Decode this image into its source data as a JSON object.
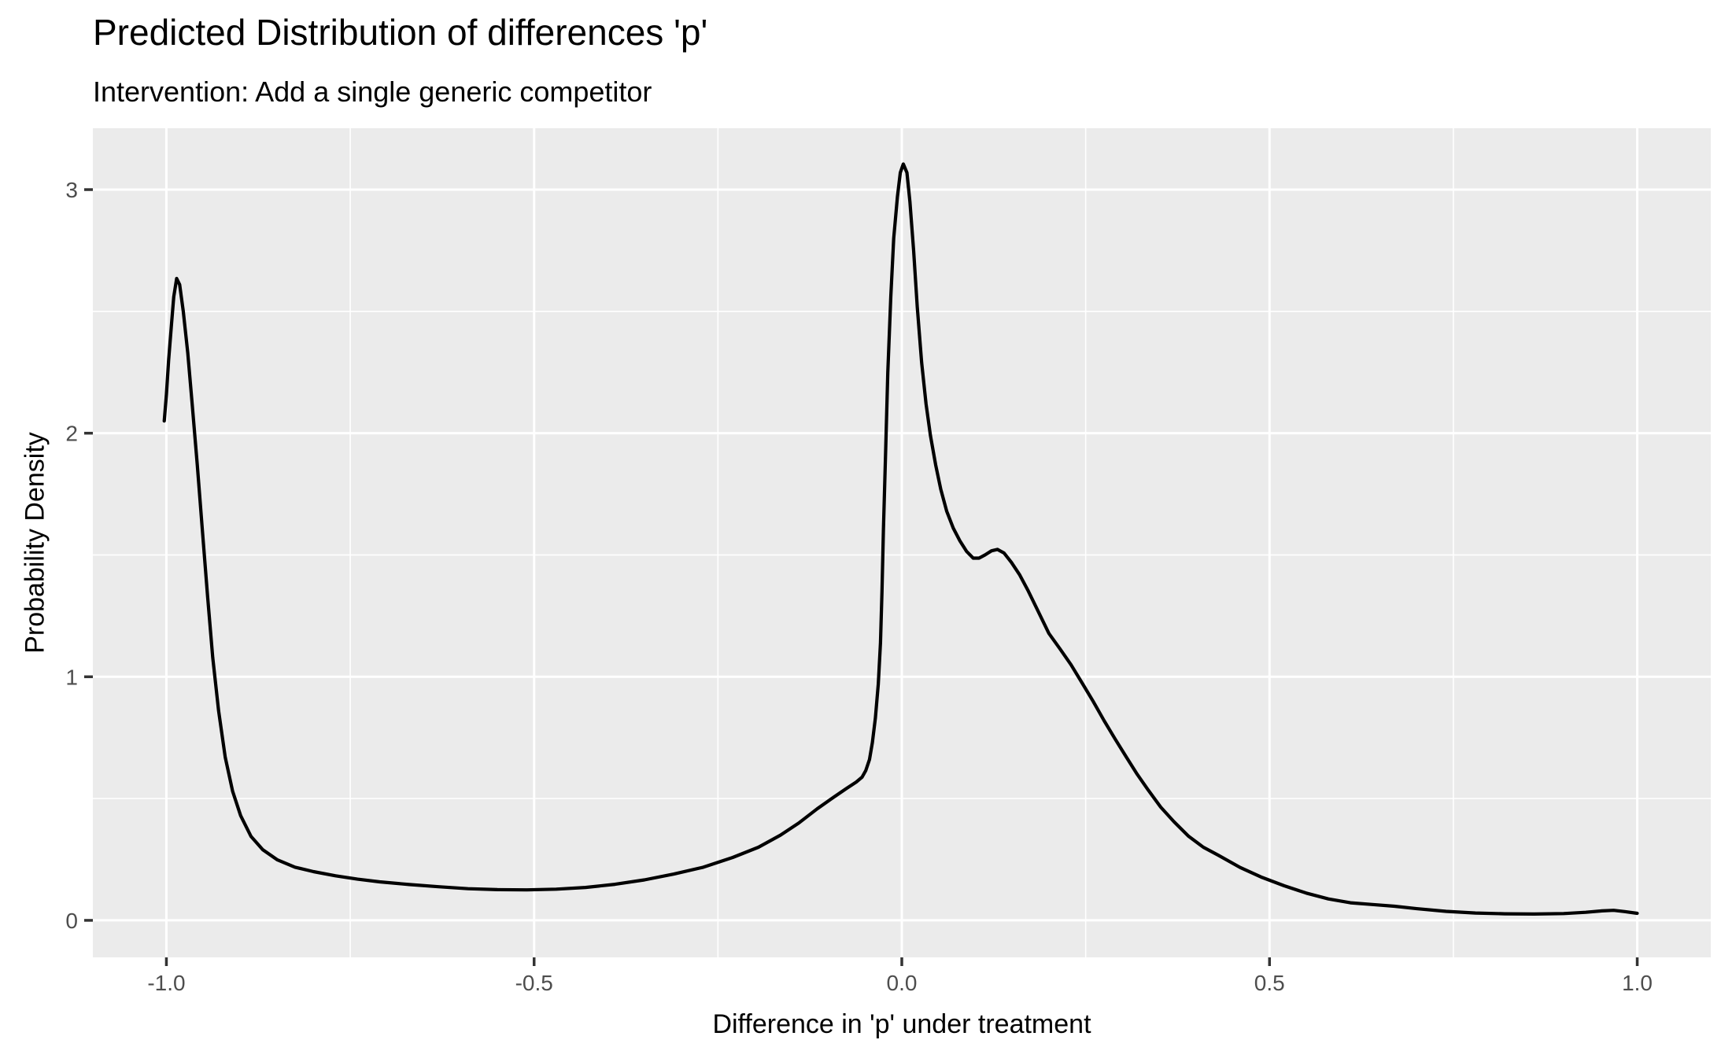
{
  "chart_data": {
    "type": "line",
    "subtype": "density-curve",
    "title": "Predicted Distribution of differences 'p'",
    "subtitle": "Intervention: Add a single generic competitor",
    "xlabel": "Difference in 'p' under treatment",
    "ylabel": "Probability Density",
    "xlim": [
      -1.1,
      1.1
    ],
    "ylim": [
      -0.152,
      3.252
    ],
    "x_breaks": [
      -1.0,
      -0.5,
      0.0,
      0.5,
      1.0
    ],
    "x_tick_labels": [
      "-1.0",
      "-0.5",
      "0.0",
      "0.5",
      "1.0"
    ],
    "x_minor_breaks": [
      -0.75,
      -0.25,
      0.25,
      0.75
    ],
    "y_breaks": [
      0,
      1,
      2,
      3
    ],
    "y_tick_labels": [
      "0",
      "1",
      "2",
      "3"
    ],
    "y_minor_breaks": [
      0.5,
      1.5,
      2.5
    ],
    "grid": "major-and-minor",
    "legend": "none",
    "theme": "ggplot2-grey",
    "series": [
      {
        "name": "density",
        "points": [
          [
            -1.003,
            2.05
          ],
          [
            -1.0,
            2.16
          ],
          [
            -0.997,
            2.3
          ],
          [
            -0.993,
            2.45
          ],
          [
            -0.99,
            2.56
          ],
          [
            -0.986,
            2.635
          ],
          [
            -0.982,
            2.61
          ],
          [
            -0.977,
            2.5
          ],
          [
            -0.971,
            2.33
          ],
          [
            -0.965,
            2.12
          ],
          [
            -0.958,
            1.87
          ],
          [
            -0.951,
            1.6
          ],
          [
            -0.944,
            1.33
          ],
          [
            -0.937,
            1.08
          ],
          [
            -0.929,
            0.86
          ],
          [
            -0.92,
            0.67
          ],
          [
            -0.91,
            0.53
          ],
          [
            -0.899,
            0.43
          ],
          [
            -0.885,
            0.345
          ],
          [
            -0.869,
            0.29
          ],
          [
            -0.849,
            0.248
          ],
          [
            -0.825,
            0.218
          ],
          [
            -0.8,
            0.2
          ],
          [
            -0.77,
            0.183
          ],
          [
            -0.74,
            0.169
          ],
          [
            -0.71,
            0.158
          ],
          [
            -0.67,
            0.147
          ],
          [
            -0.63,
            0.138
          ],
          [
            -0.59,
            0.13
          ],
          [
            -0.55,
            0.126
          ],
          [
            -0.51,
            0.125
          ],
          [
            -0.47,
            0.128
          ],
          [
            -0.43,
            0.135
          ],
          [
            -0.39,
            0.148
          ],
          [
            -0.35,
            0.166
          ],
          [
            -0.31,
            0.19
          ],
          [
            -0.27,
            0.218
          ],
          [
            -0.23,
            0.258
          ],
          [
            -0.195,
            0.3
          ],
          [
            -0.165,
            0.35
          ],
          [
            -0.14,
            0.4
          ],
          [
            -0.115,
            0.458
          ],
          [
            -0.093,
            0.505
          ],
          [
            -0.075,
            0.542
          ],
          [
            -0.062,
            0.568
          ],
          [
            -0.054,
            0.588
          ],
          [
            -0.049,
            0.615
          ],
          [
            -0.044,
            0.66
          ],
          [
            -0.04,
            0.73
          ],
          [
            -0.036,
            0.83
          ],
          [
            -0.032,
            0.97
          ],
          [
            -0.029,
            1.14
          ],
          [
            -0.027,
            1.35
          ],
          [
            -0.025,
            1.6
          ],
          [
            -0.022,
            1.92
          ],
          [
            -0.019,
            2.25
          ],
          [
            -0.015,
            2.56
          ],
          [
            -0.011,
            2.8
          ],
          [
            -0.006,
            2.97
          ],
          [
            -0.002,
            3.07
          ],
          [
            0.002,
            3.105
          ],
          [
            0.007,
            3.07
          ],
          [
            0.011,
            2.95
          ],
          [
            0.016,
            2.75
          ],
          [
            0.021,
            2.52
          ],
          [
            0.027,
            2.29
          ],
          [
            0.033,
            2.12
          ],
          [
            0.039,
            1.99
          ],
          [
            0.046,
            1.87
          ],
          [
            0.053,
            1.77
          ],
          [
            0.061,
            1.68
          ],
          [
            0.07,
            1.61
          ],
          [
            0.079,
            1.558
          ],
          [
            0.088,
            1.515
          ],
          [
            0.097,
            1.487
          ],
          [
            0.105,
            1.487
          ],
          [
            0.113,
            1.5
          ],
          [
            0.122,
            1.517
          ],
          [
            0.13,
            1.523
          ],
          [
            0.139,
            1.508
          ],
          [
            0.149,
            1.47
          ],
          [
            0.16,
            1.42
          ],
          [
            0.172,
            1.352
          ],
          [
            0.186,
            1.265
          ],
          [
            0.2,
            1.178
          ],
          [
            0.215,
            1.115
          ],
          [
            0.23,
            1.05
          ],
          [
            0.245,
            0.975
          ],
          [
            0.26,
            0.9
          ],
          [
            0.275,
            0.82
          ],
          [
            0.29,
            0.745
          ],
          [
            0.305,
            0.672
          ],
          [
            0.32,
            0.6
          ],
          [
            0.335,
            0.535
          ],
          [
            0.352,
            0.465
          ],
          [
            0.37,
            0.405
          ],
          [
            0.39,
            0.345
          ],
          [
            0.41,
            0.3
          ],
          [
            0.43,
            0.268
          ],
          [
            0.46,
            0.217
          ],
          [
            0.49,
            0.176
          ],
          [
            0.52,
            0.142
          ],
          [
            0.55,
            0.112
          ],
          [
            0.58,
            0.088
          ],
          [
            0.61,
            0.072
          ],
          [
            0.64,
            0.065
          ],
          [
            0.67,
            0.058
          ],
          [
            0.7,
            0.048
          ],
          [
            0.74,
            0.037
          ],
          [
            0.78,
            0.03
          ],
          [
            0.82,
            0.027
          ],
          [
            0.86,
            0.026
          ],
          [
            0.9,
            0.028
          ],
          [
            0.93,
            0.033
          ],
          [
            0.952,
            0.039
          ],
          [
            0.968,
            0.041
          ],
          [
            0.983,
            0.036
          ],
          [
            1.0,
            0.029
          ]
        ]
      }
    ],
    "annotations": {
      "left_peak": {
        "x": -0.986,
        "y": 2.64
      },
      "main_peak": {
        "x": 0.002,
        "y": 3.1
      },
      "shoulder_bump": {
        "x": 0.13,
        "y": 1.52
      }
    },
    "colors": {
      "panel_background": "#EBEBEB",
      "grid": "#FFFFFF",
      "line": "#000000",
      "axis_text": "#4D4D4D",
      "tick_mark": "#333333",
      "title_text": "#000000",
      "plot_background": "#FFFFFF"
    }
  }
}
